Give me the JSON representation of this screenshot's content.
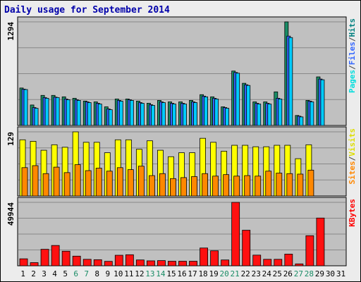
{
  "title": "Daily usage for September 2014",
  "chart_data": {
    "type": "bar",
    "days": [
      "1",
      "2",
      "3",
      "4",
      "5",
      "6",
      "7",
      "8",
      "9",
      "10",
      "11",
      "12",
      "13",
      "14",
      "15",
      "16",
      "17",
      "18",
      "19",
      "20",
      "21",
      "22",
      "23",
      "24",
      "25",
      "26",
      "27",
      "28",
      "29",
      "30",
      "31"
    ],
    "weekend_days": [
      "6",
      "7",
      "13",
      "14",
      "20",
      "21",
      "27",
      "28"
    ],
    "panels": [
      {
        "id": "traffic",
        "ymax_label": "1294",
        "ymax": 1294,
        "legend": [
          "Pages",
          "/",
          "Files",
          "/",
          "Hits"
        ],
        "legend_colors": [
          "#00dddd",
          "#444444",
          "#3366ff",
          "#444444",
          "#008080"
        ],
        "series": [
          {
            "name": "Hits",
            "color": "#1a8c66",
            "values": [
              468,
              256,
              376,
              376,
              358,
              340,
              305,
              295,
              233,
              331,
              331,
              305,
              278,
              313,
              295,
              295,
              313,
              385,
              358,
              233,
              680,
              527,
              295,
              295,
              420,
              1294,
              125,
              313,
              607,
              null,
              null
            ]
          },
          {
            "name": "Files",
            "color": "#3366ff",
            "values": [
              454,
              224,
              349,
              354,
              331,
              322,
              295,
              277,
              206,
              313,
              322,
              286,
              260,
              295,
              277,
              277,
              295,
              367,
              340,
              224,
              662,
              509,
              277,
              277,
              340,
              1116,
              116,
              304,
              580,
              null,
              null
            ]
          },
          {
            "name": "Pages",
            "color": "#00ccff",
            "values": [
              449,
              215,
              340,
              349,
              322,
              313,
              286,
              268,
              197,
              304,
              313,
              277,
              251,
              286,
              268,
              268,
              286,
              358,
              331,
              215,
              653,
              500,
              268,
              268,
              331,
              1098,
              107,
              295,
              571,
              null,
              null
            ]
          }
        ]
      },
      {
        "id": "visits",
        "ymax_label": "129",
        "ymax": 129,
        "legend": [
          "Sites",
          "/",
          "Visits"
        ],
        "legend_colors": [
          "#ff8800",
          "#444444",
          "#dddd00"
        ],
        "series": [
          {
            "name": "Visits",
            "color": "#ffff00",
            "values": [
              113,
              110,
              92,
              103,
              98,
              129,
              108,
              108,
              87,
              113,
              113,
              94,
              111,
              92,
              79,
              87,
              87,
              116,
              108,
              90,
              102,
              102,
              99,
              99,
              102,
              102,
              75,
              103,
              null,
              null,
              null
            ]
          },
          {
            "name": "Sites",
            "color": "#ff8800",
            "values": [
              57,
              61,
              45,
              58,
              47,
              63,
              51,
              56,
              50,
              57,
              53,
              60,
              41,
              45,
              35,
              37,
              39,
              45,
              40,
              43,
              40,
              41,
              40,
              50,
              46,
              45,
              44,
              52,
              null,
              null,
              null
            ]
          }
        ]
      },
      {
        "id": "kbytes",
        "ymax_label": "49944",
        "ymax": 49944,
        "legend": [
          "KBytes"
        ],
        "legend_colors": [
          "#ff0000"
        ],
        "series": [
          {
            "name": "KBytes",
            "color": "#ff1010",
            "values": [
              5500,
              2500,
              13000,
              16000,
              11500,
              7600,
              5100,
              4800,
              3500,
              8300,
              8700,
              4600,
              3900,
              4100,
              3600,
              3600,
              3600,
              14000,
              11800,
              4600,
              49944,
              28000,
              8400,
              5100,
              5100,
              9200,
              1500,
              23700,
              37600,
              null,
              null
            ]
          }
        ]
      }
    ]
  }
}
